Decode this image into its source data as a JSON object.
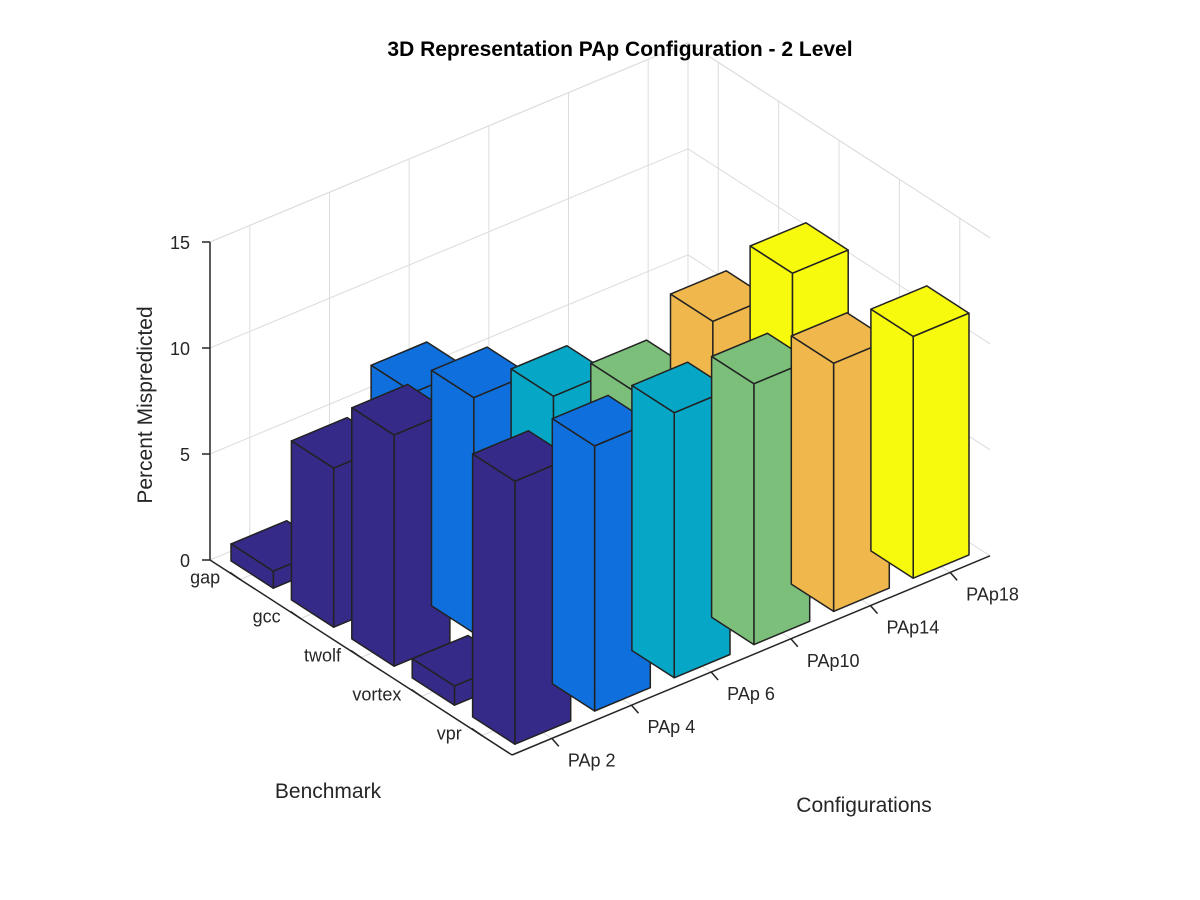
{
  "chart_data": {
    "type": "bar3",
    "title": "3D Representation PAp Configuration - 2 Level",
    "xlabel": "Configurations",
    "ylabel": "Benchmark",
    "zlabel": "Percent Mispredicted",
    "zlim": [
      0,
      15
    ],
    "zticks": [
      0,
      5,
      10,
      15
    ],
    "grid": true,
    "categories_x": [
      "PAp 2",
      "PAp 4",
      "PAp 6",
      "PAp10",
      "PAp14",
      "PAp18"
    ],
    "categories_y": [
      "gap",
      "gcc",
      "twolf",
      "vortex",
      "vpr"
    ],
    "series": [
      {
        "color": "#352a87",
        "values": [
          0.8,
          7.5,
          10.9,
          0.9,
          12.4
        ]
      },
      {
        "color": "#0f6fdc",
        "values": [
          null,
          9.5,
          11.1,
          null,
          12.5
        ]
      },
      {
        "color": "#06a7c6",
        "values": [
          null,
          null,
          9.6,
          null,
          12.5
        ]
      },
      {
        "color": "#7cbf7b",
        "values": [
          null,
          null,
          8.3,
          null,
          12.3
        ]
      },
      {
        "color": "#f0b84c",
        "values": [
          null,
          null,
          10.0,
          null,
          11.7
        ]
      },
      {
        "color": "#f8fa0d",
        "values": [
          null,
          null,
          10.7,
          null,
          11.4
        ]
      }
    ]
  }
}
